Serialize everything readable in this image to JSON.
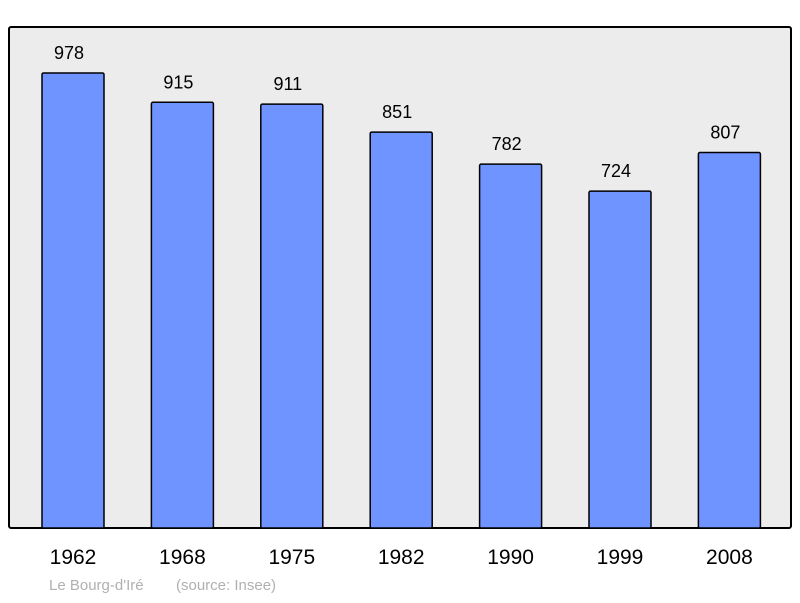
{
  "chart_data": {
    "type": "bar",
    "title": "",
    "xlabel": "",
    "ylabel": "",
    "categories": [
      "1962",
      "1968",
      "1975",
      "1982",
      "1990",
      "1999",
      "2008"
    ],
    "values": [
      978,
      915,
      911,
      851,
      782,
      724,
      807
    ],
    "ylim": [
      0,
      1077
    ],
    "grid": false,
    "data_labels": true,
    "colors": {
      "bar": "#7094ff",
      "plot_background": "#ececec",
      "border": "#000000",
      "footer_text": "#b0b0b0"
    }
  },
  "footer": {
    "place": "Le Bourg-d'Iré",
    "source": "(source: Insee)"
  }
}
